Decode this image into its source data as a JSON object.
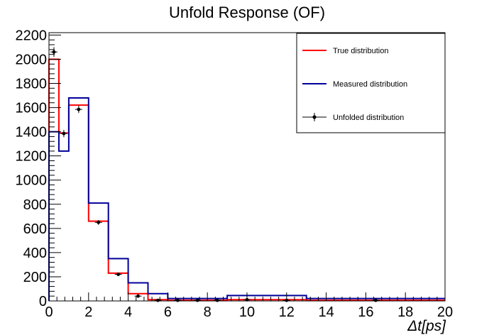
{
  "chart_data": {
    "type": "histogram",
    "title": "Unfold Response (OF)",
    "xlabel": "Δt[ps]",
    "ylabel": "",
    "xlim": [
      0,
      20
    ],
    "ylim": [
      0,
      2220
    ],
    "x_ticks": [
      0,
      2,
      4,
      6,
      8,
      10,
      12,
      14,
      16,
      18,
      20
    ],
    "y_ticks": [
      0,
      200,
      400,
      600,
      800,
      1000,
      1200,
      1400,
      1600,
      1800,
      2000,
      2200
    ],
    "legend_position": "top-right",
    "grid": false,
    "series": [
      {
        "name": "True distribution",
        "style": "step",
        "color": "#ff0000",
        "bin_edges": [
          0,
          0.5,
          1,
          2,
          3,
          4,
          5,
          6,
          7,
          8,
          9,
          11,
          13,
          20
        ],
        "values": [
          2000,
          1390,
          1620,
          660,
          230,
          60,
          10,
          5,
          5,
          5,
          10,
          10,
          5
        ]
      },
      {
        "name": "Measured distribution",
        "style": "step",
        "color": "#000099",
        "bin_edges": [
          0,
          0.5,
          1,
          2,
          3,
          4,
          5,
          6,
          7,
          8,
          9,
          11,
          13,
          20
        ],
        "values": [
          1400,
          1240,
          1680,
          810,
          350,
          150,
          60,
          20,
          20,
          20,
          45,
          45,
          20
        ]
      },
      {
        "name": "Unfolded distribution",
        "style": "markers",
        "color": "#000000",
        "x": [
          0.25,
          0.75,
          1.5,
          2.5,
          3.5,
          4.5,
          5.5,
          6.5,
          7.5,
          8.5,
          10,
          12,
          16.5
        ],
        "y": [
          2060,
          1385,
          1585,
          650,
          220,
          40,
          5,
          5,
          5,
          5,
          10,
          5,
          5
        ],
        "yerr": [
          40,
          30,
          30,
          20,
          12,
          8,
          3,
          3,
          3,
          3,
          3,
          3,
          2
        ]
      }
    ]
  }
}
